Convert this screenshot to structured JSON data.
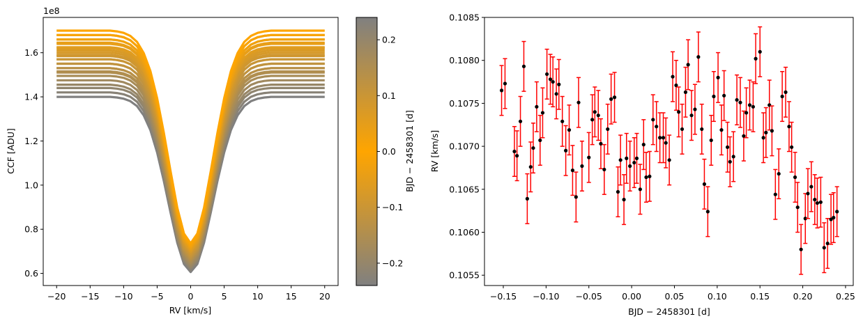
{
  "chart_data": [
    {
      "type": "line",
      "xlabel": "RV [km/s]",
      "ylabel": "CCF [ADU]",
      "y_offset_label": "1e8",
      "xlim": [
        -22,
        22
      ],
      "ylim": [
        0.545,
        1.76
      ],
      "xticks": [
        -20,
        -15,
        -10,
        -5,
        0,
        5,
        10,
        15,
        20
      ],
      "xtick_labels": [
        "−20",
        "−15",
        "−10",
        "−5",
        "0",
        "5",
        "10",
        "15",
        "20"
      ],
      "yticks": [
        0.6,
        0.8,
        1.0,
        1.2,
        1.4,
        1.6
      ],
      "ytick_labels": [
        "0.6",
        "0.8",
        "1.0",
        "1.2",
        "1.4",
        "1.6"
      ],
      "grid": false,
      "rv": [
        -20,
        -19,
        -18,
        -17,
        -16,
        -15,
        -14,
        -13,
        -12,
        -11,
        -10,
        -9,
        -8,
        -7,
        -6,
        -5,
        -4,
        -3,
        -2,
        -1,
        0,
        1,
        2,
        3,
        4,
        5,
        6,
        7,
        8,
        9,
        10,
        11,
        12,
        13,
        14,
        15,
        16,
        17,
        18,
        19,
        20
      ],
      "normalized_profile": [
        1,
        1,
        1,
        1,
        1,
        1,
        1,
        1,
        1,
        0.998,
        0.994,
        0.986,
        0.97,
        0.94,
        0.892,
        0.82,
        0.728,
        0.625,
        0.528,
        0.459,
        0.433,
        0.459,
        0.528,
        0.625,
        0.728,
        0.82,
        0.892,
        0.94,
        0.97,
        0.986,
        0.994,
        0.998,
        1,
        1,
        1,
        1,
        1,
        1,
        1,
        1,
        1
      ],
      "curves": {
        "bjd": [
          -0.15,
          -0.137,
          -0.122,
          -0.107,
          -0.092,
          -0.077,
          -0.062,
          -0.046,
          -0.031,
          -0.016,
          0.24,
          0.224,
          0.209,
          0.194,
          0.179,
          0.164,
          0.149,
          0.134,
          0.119,
          0.104,
          0.089,
          0.074,
          0.059,
          0.044,
          0.029,
          0.014,
          -0.002
        ],
        "continuum_e8": [
          1.51,
          1.53,
          1.55,
          1.57,
          1.585,
          1.6,
          1.62,
          1.64,
          1.66,
          1.68,
          1.4,
          1.42,
          1.44,
          1.455,
          1.475,
          1.495,
          1.515,
          1.53,
          1.55,
          1.57,
          1.59,
          1.61,
          1.625,
          1.645,
          1.66,
          1.68,
          1.7
        ]
      },
      "colorbar": {
        "label": "BJD − 2458301 [d]",
        "range": [
          -0.24,
          0.24
        ],
        "ticks": [
          -0.2,
          -0.1,
          0.0,
          0.1,
          0.2
        ],
        "tick_labels": [
          "−0.2",
          "−0.1",
          "0.0",
          "0.1",
          "0.2"
        ],
        "colormap": [
          "#808080",
          "#ffa500",
          "#808080"
        ]
      }
    },
    {
      "type": "scatter",
      "xlabel": "BJD − 2458301 [d]",
      "ylabel": "RV [km/s]",
      "xlim": [
        -0.172,
        0.259
      ],
      "ylim": [
        0.10538,
        0.1085
      ],
      "xticks": [
        -0.15,
        -0.1,
        -0.05,
        0.0,
        0.05,
        0.1,
        0.15,
        0.2,
        0.25
      ],
      "xtick_labels": [
        "−0.15",
        "−0.10",
        "−0.05",
        "0.00",
        "0.05",
        "0.10",
        "0.15",
        "0.20",
        "0.25"
      ],
      "yticks": [
        0.1055,
        0.106,
        0.1065,
        0.107,
        0.1075,
        0.108,
        0.1085
      ],
      "ytick_labels": [
        "0.1055",
        "0.1060",
        "0.1065",
        "0.1070",
        "0.1075",
        "0.1080",
        "0.1085"
      ],
      "grid": false,
      "marker_color": "#000000",
      "errorbar_color": "#ff0000",
      "yerr": 0.00029,
      "x": [
        -0.152,
        -0.148,
        -0.137,
        -0.134,
        -0.13,
        -0.126,
        -0.122,
        -0.118,
        -0.115,
        -0.111,
        -0.107,
        -0.104,
        -0.099,
        -0.095,
        -0.092,
        -0.088,
        -0.085,
        -0.081,
        -0.077,
        -0.073,
        -0.069,
        -0.065,
        -0.062,
        -0.058,
        -0.05,
        -0.046,
        -0.043,
        -0.039,
        -0.036,
        -0.032,
        -0.028,
        -0.024,
        -0.02,
        -0.016,
        -0.013,
        -0.009,
        -0.006,
        -0.002,
        0.003,
        0.006,
        0.01,
        0.014,
        0.017,
        0.021,
        0.025,
        0.029,
        0.033,
        0.037,
        0.04,
        0.044,
        0.048,
        0.052,
        0.055,
        0.059,
        0.063,
        0.066,
        0.07,
        0.074,
        0.078,
        0.082,
        0.085,
        0.089,
        0.093,
        0.096,
        0.101,
        0.105,
        0.108,
        0.112,
        0.115,
        0.119,
        0.123,
        0.127,
        0.131,
        0.134,
        0.138,
        0.142,
        0.145,
        0.15,
        0.154,
        0.157,
        0.161,
        0.164,
        0.168,
        0.172,
        0.176,
        0.18,
        0.184,
        0.187,
        0.191,
        0.194,
        0.198,
        0.203,
        0.206,
        0.21,
        0.214,
        0.217,
        0.221,
        0.225,
        0.229,
        0.233,
        0.236,
        0.24
      ],
      "y": [
        0.10765,
        0.10773,
        0.10694,
        0.10689,
        0.10729,
        0.10793,
        0.10639,
        0.10676,
        0.10698,
        0.10746,
        0.10707,
        0.10739,
        0.10784,
        0.10778,
        0.10775,
        0.10761,
        0.10772,
        0.10729,
        0.10695,
        0.10719,
        0.10672,
        0.10641,
        0.10751,
        0.10677,
        0.10687,
        0.10731,
        0.1074,
        0.10736,
        0.10703,
        0.10673,
        0.1072,
        0.10755,
        0.10757,
        0.10647,
        0.10684,
        0.10638,
        0.10686,
        0.10677,
        0.10681,
        0.10686,
        0.1065,
        0.10702,
        0.10664,
        0.10665,
        0.10731,
        0.10723,
        0.1071,
        0.1071,
        0.10704,
        0.10684,
        0.10781,
        0.10771,
        0.1074,
        0.1072,
        0.10763,
        0.10795,
        0.10736,
        0.10743,
        0.10804,
        0.1072,
        0.10656,
        0.10624,
        0.10707,
        0.10758,
        0.1078,
        0.10719,
        0.10759,
        0.10699,
        0.10682,
        0.10688,
        0.10754,
        0.10751,
        0.10712,
        0.10739,
        0.10748,
        0.10746,
        0.10802,
        0.1081,
        0.1071,
        0.10716,
        0.10748,
        0.10718,
        0.10644,
        0.10668,
        0.10758,
        0.10763,
        0.10723,
        0.10699,
        0.10664,
        0.10629,
        0.1058,
        0.10616,
        0.10645,
        0.10653,
        0.10638,
        0.10634,
        0.10635,
        0.10582,
        0.10587,
        0.10615,
        0.10617,
        0.10624
      ]
    }
  ]
}
